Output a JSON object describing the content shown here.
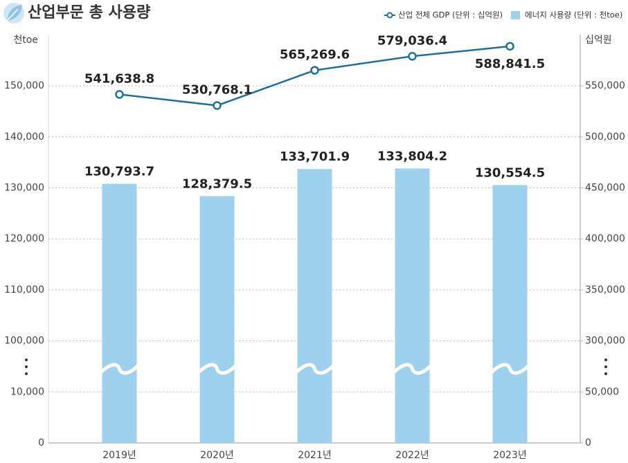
{
  "chart_data": {
    "type": "combo",
    "title": "산업부문 총 사용량",
    "categories": [
      "2019년",
      "2020년",
      "2021년",
      "2022년",
      "2023년"
    ],
    "series": [
      {
        "name": "산업 전체 GDP (단위 : 십억원)",
        "type": "line",
        "axis": "y2",
        "color": "#1f6f9a",
        "values": [
          541638.8,
          530768.1,
          565269.6,
          579036.4,
          588841.5
        ],
        "value_labels": [
          "541,638.8",
          "530,768.1",
          "565,269.6",
          "579,036.4",
          "588,841.5"
        ]
      },
      {
        "name": "에너지 사용량 (단위 : 천toe)",
        "type": "bar",
        "color": "#9dd1ee",
        "values": [
          130793.7,
          128379.5,
          133701.9,
          133804.2,
          130554.5
        ],
        "value_labels": [
          "130,793.7",
          "128,379.5",
          "133,701.9",
          "133,804.2",
          "130,554.5"
        ]
      }
    ],
    "y_label": "천toe",
    "y2_label": "십억원",
    "ylim": [
      0,
      160000
    ],
    "yticks": [
      0,
      {
        "value": 10000,
        "label": "10,000"
      },
      {
        "value": 100000,
        "label": "100,000"
      },
      {
        "value": 110000,
        "label": "110,000"
      },
      {
        "value": 120000,
        "label": "120,000"
      },
      {
        "value": 130000,
        "label": "130,000"
      },
      {
        "value": 140000,
        "label": "140,000"
      },
      {
        "value": 150000,
        "label": "150,000"
      }
    ],
    "y2lim": [
      0,
      600000
    ],
    "y2ticks": [
      0,
      {
        "value": 50000,
        "label": "50,000"
      },
      {
        "value": 300000,
        "label": "300,000"
      },
      {
        "value": 350000,
        "label": "350,000"
      },
      {
        "value": 400000,
        "label": "400,000"
      },
      {
        "value": 450000,
        "label": "450,000"
      },
      {
        "value": 500000,
        "label": "500,000"
      },
      {
        "value": 550000,
        "label": "550,000"
      }
    ],
    "grid": true,
    "axis_break": true,
    "legend_position": "top-right"
  }
}
